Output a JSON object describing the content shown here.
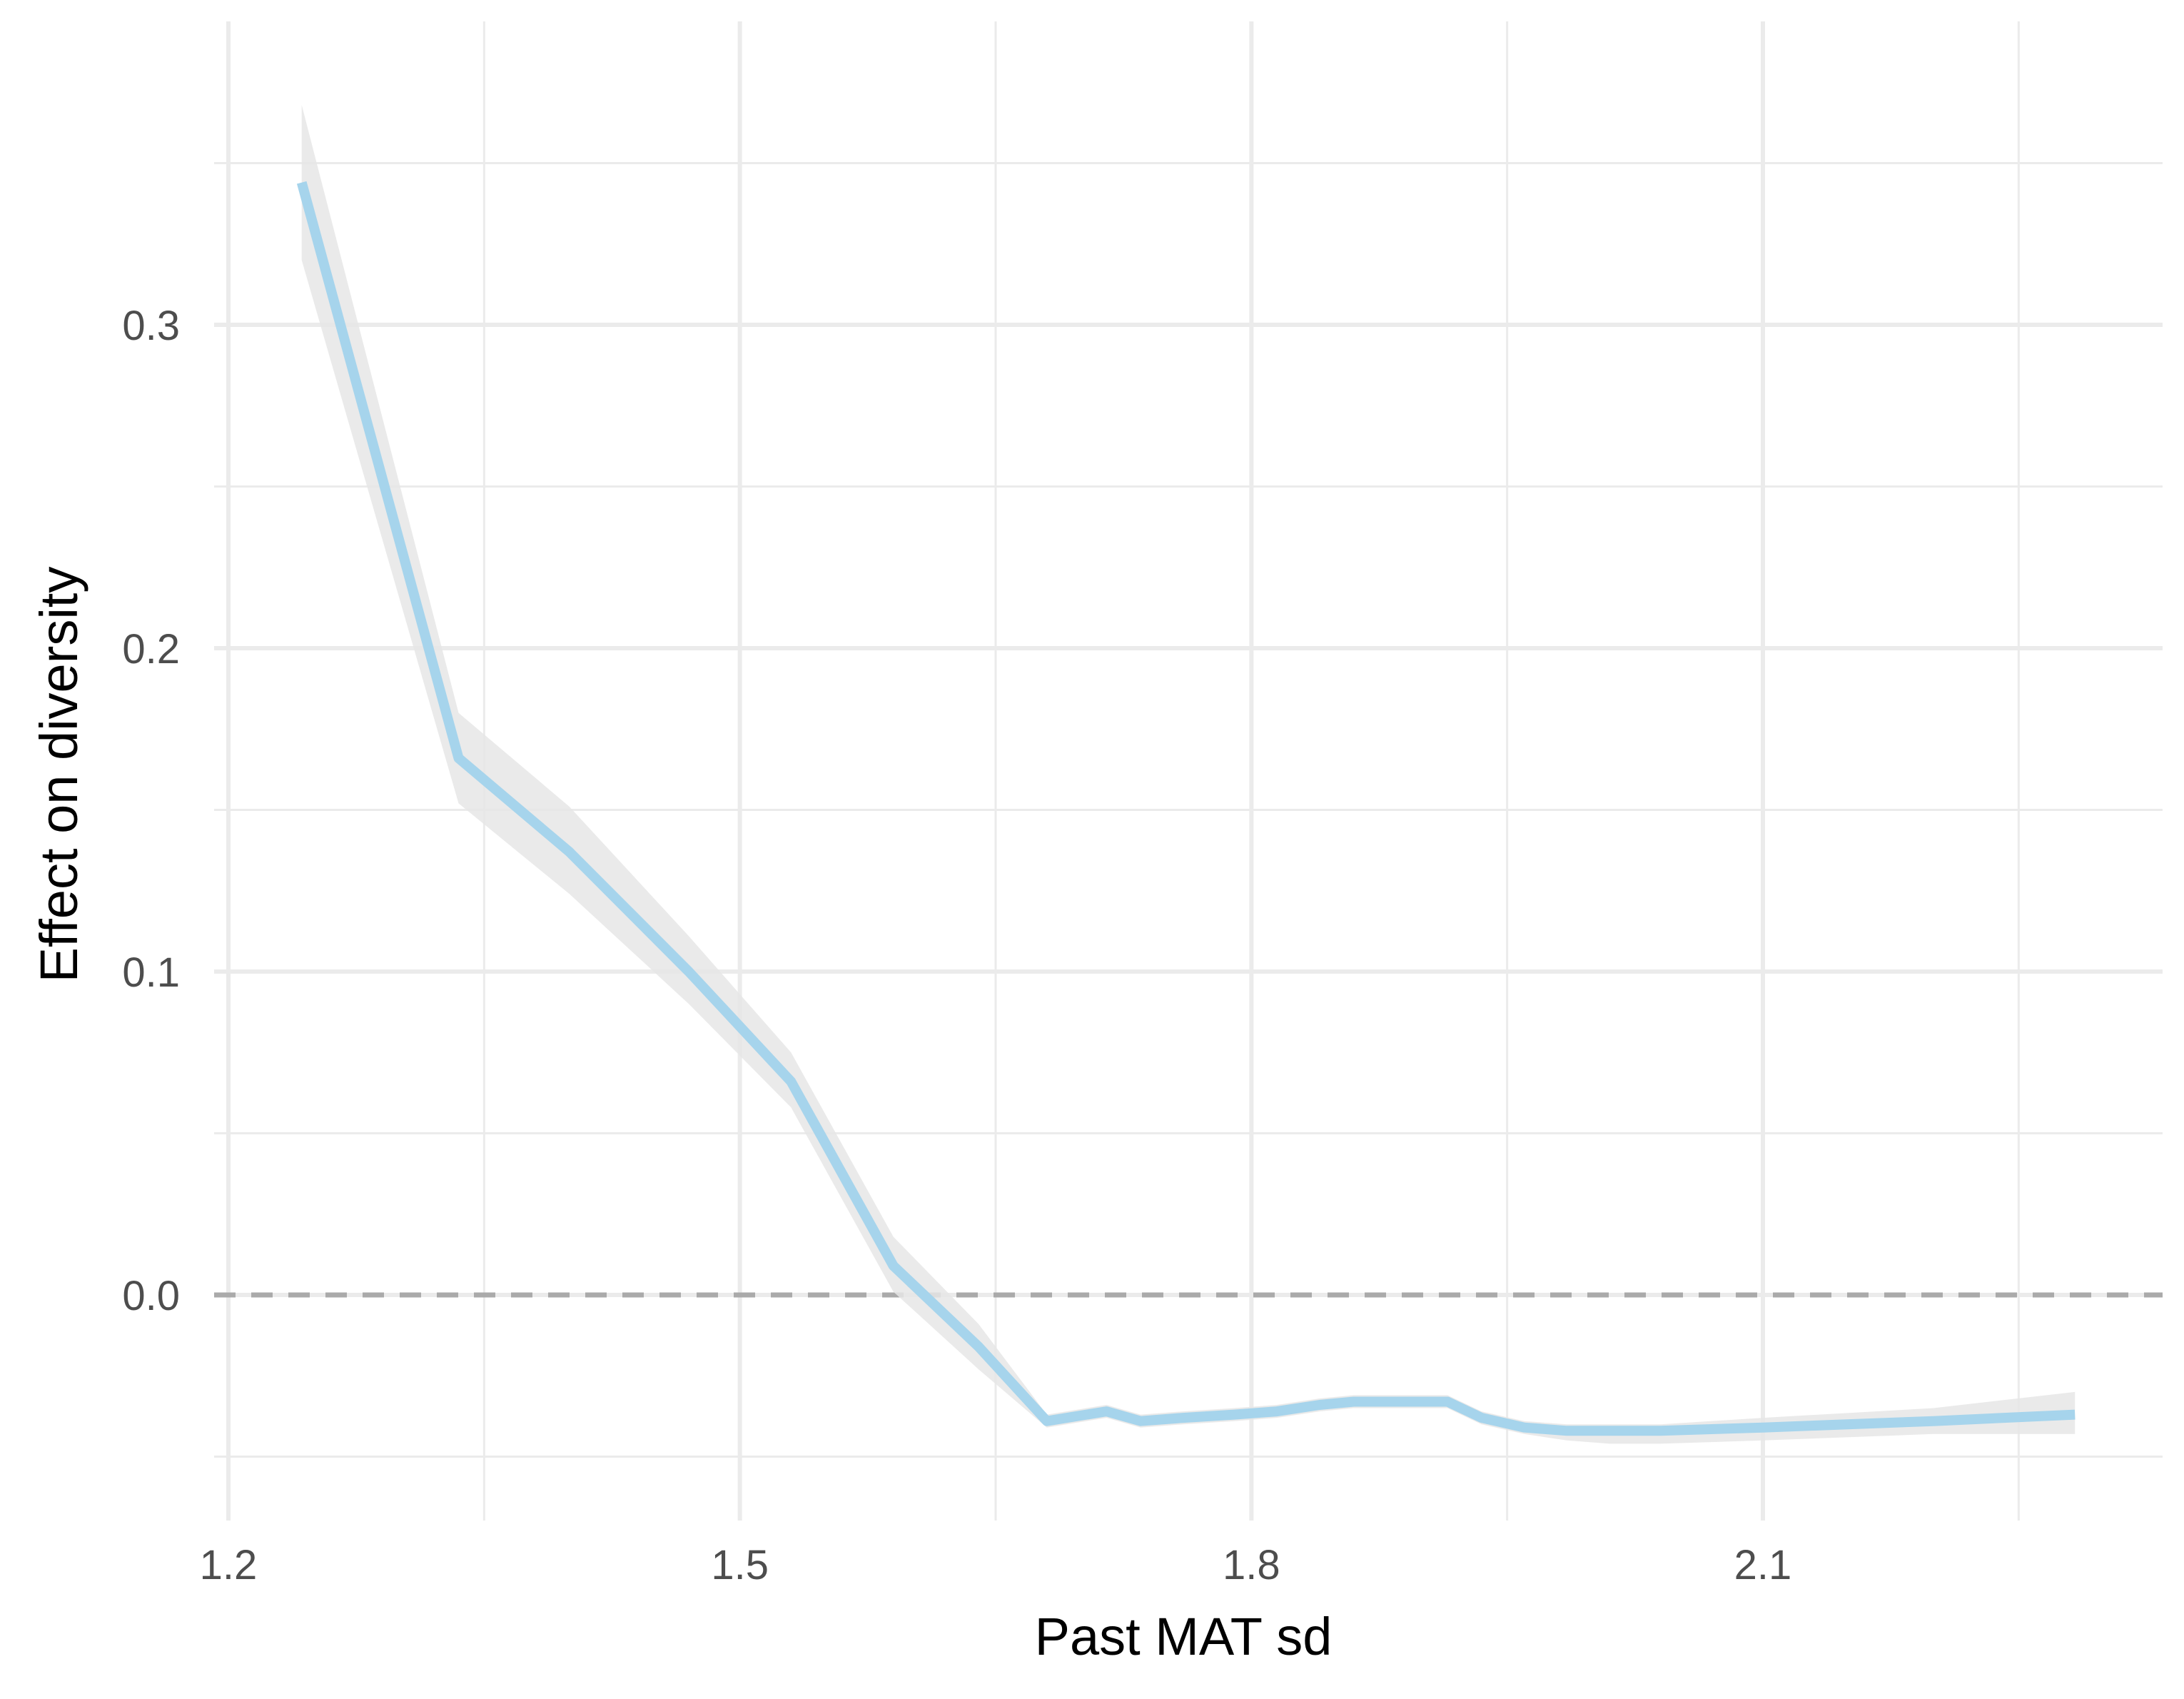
{
  "chart_data": {
    "type": "line",
    "title": "",
    "xlabel": "Past MAT sd",
    "ylabel": "Effect on diversity",
    "xlim": [
      1.2,
      2.33
    ],
    "ylim": [
      -0.065,
      0.375
    ],
    "x_ticks": [
      1.2,
      1.5,
      1.8,
      2.1
    ],
    "x_tick_labels": [
      "1.2",
      "1.5",
      "1.8",
      "2.1"
    ],
    "x_minor_ticks": [
      1.35,
      1.65,
      1.95,
      2.25
    ],
    "y_ticks": [
      0.0,
      0.1,
      0.2,
      0.3
    ],
    "y_tick_labels": [
      "0.0",
      "0.1",
      "0.2",
      "0.3"
    ],
    "y_minor_ticks": [
      -0.05,
      0.05,
      0.15,
      0.25,
      0.35
    ],
    "grid": true,
    "reference_line": {
      "y": 0.0,
      "style": "dashed",
      "color": "#aaaaaa"
    },
    "series": [
      {
        "name": "Effect on diversity",
        "color": "#a6d4ec",
        "ribbon_color": "#e6e6e6",
        "x": [
          1.243,
          1.335,
          1.4,
          1.47,
          1.53,
          1.59,
          1.64,
          1.68,
          1.715,
          1.735,
          1.76,
          1.79,
          1.815,
          1.84,
          1.86,
          1.88,
          1.9,
          1.915,
          1.935,
          1.96,
          1.985,
          2.01,
          2.04,
          2.1,
          2.2,
          2.283
        ],
        "y": [
          0.344,
          0.166,
          0.137,
          0.1,
          0.066,
          0.009,
          -0.016,
          -0.039,
          -0.036,
          -0.039,
          -0.038,
          -0.037,
          -0.036,
          -0.034,
          -0.033,
          -0.033,
          -0.033,
          -0.033,
          -0.038,
          -0.041,
          -0.042,
          -0.042,
          -0.042,
          -0.041,
          -0.039,
          -0.037
        ],
        "lower": [
          0.32,
          0.152,
          0.124,
          0.09,
          0.058,
          0.001,
          -0.023,
          -0.041,
          -0.038,
          -0.041,
          -0.04,
          -0.039,
          -0.038,
          -0.036,
          -0.035,
          -0.035,
          -0.035,
          -0.035,
          -0.04,
          -0.043,
          -0.045,
          -0.046,
          -0.046,
          -0.045,
          -0.043,
          -0.043
        ],
        "upper": [
          0.368,
          0.18,
          0.151,
          0.111,
          0.075,
          0.018,
          -0.009,
          -0.037,
          -0.034,
          -0.037,
          -0.036,
          -0.035,
          -0.034,
          -0.032,
          -0.031,
          -0.031,
          -0.031,
          -0.031,
          -0.036,
          -0.039,
          -0.04,
          -0.04,
          -0.04,
          -0.038,
          -0.035,
          -0.03
        ]
      }
    ]
  }
}
